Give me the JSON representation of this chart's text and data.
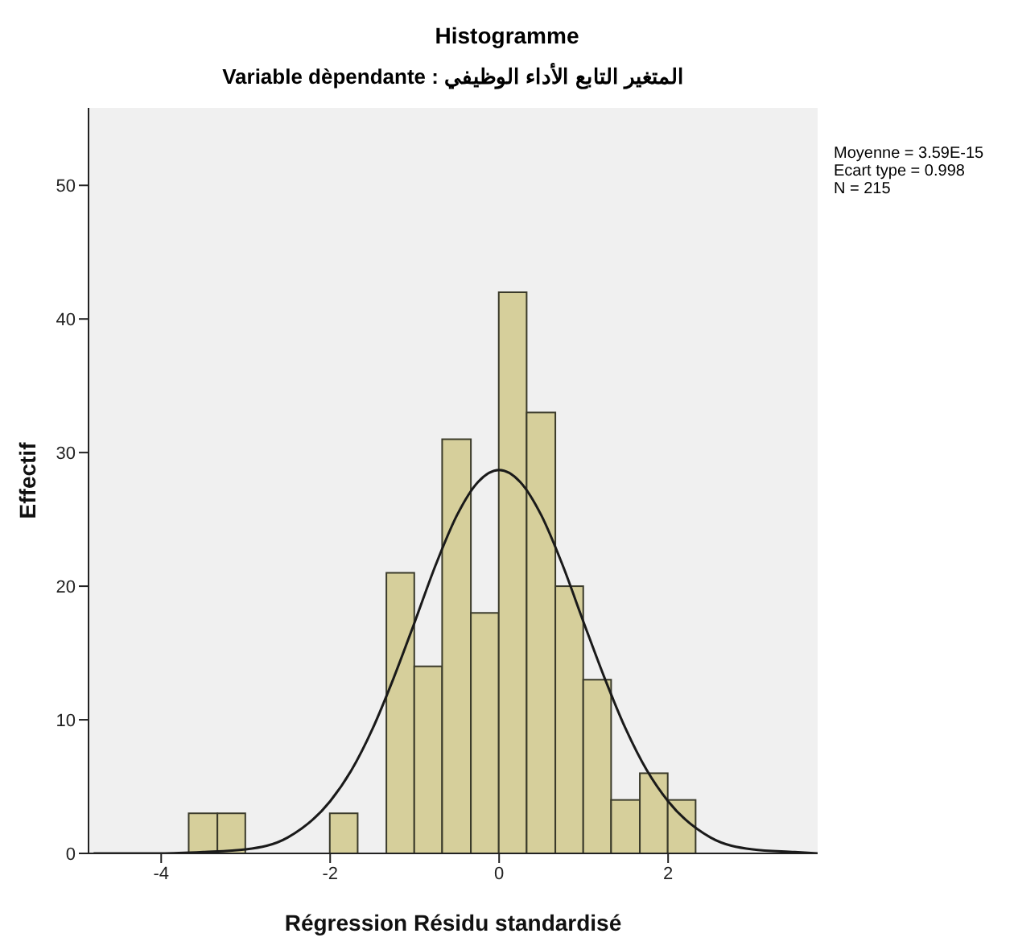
{
  "chart_data": {
    "type": "histogram",
    "title": "Histogramme",
    "subtitle": "Variable dèpendante : المتغير التابع الأداء الوظيفي",
    "xlabel": "Régression Résidu standardisé",
    "ylabel": "Effectif",
    "bins": [
      -3.67,
      -3.33,
      -3,
      -2,
      -1.67,
      -1.33,
      -1,
      -0.67,
      -0.33,
      0,
      0.33,
      0.67,
      1,
      1.33,
      1.67,
      2,
      2.33
    ],
    "values": [
      3,
      3,
      0,
      3,
      0,
      21,
      14,
      31,
      18,
      42,
      33,
      20,
      13,
      4,
      6,
      4
    ],
    "color": "#d6cf9b",
    "series": [
      {
        "type": "line",
        "color": "#1a1a1a",
        "x": [
          -4.8,
          -4,
          -3.5,
          -3,
          -2.5,
          -2,
          -1.75,
          -1.5,
          -1.25,
          -1,
          -0.75,
          -0.5,
          -0.25,
          0,
          0.25,
          0.5,
          0.75,
          1,
          1.25,
          1.5,
          1.75,
          2,
          2.5,
          3,
          3.5,
          3.77
        ],
        "values": [
          0,
          0,
          0.1,
          0.3,
          1.2,
          3.9,
          6.2,
          9.3,
          13.1,
          17.3,
          21.6,
          25.3,
          27.8,
          28.7,
          27.8,
          25.3,
          21.6,
          17.3,
          13.1,
          9.3,
          6.2,
          3.9,
          1.2,
          0.3,
          0.1,
          0
        ]
      }
    ],
    "xlim": [
      -4.86,
      3.77
    ],
    "xticks": [
      -4,
      -2,
      0,
      2
    ],
    "ylim": [
      0,
      55.8
    ],
    "yticks": [
      0,
      10,
      20,
      30,
      40,
      50
    ],
    "grid": false,
    "legend": false,
    "annotations": [
      "Moyenne = 3.59E-15",
      "Ecart type = 0.998",
      "N = 215"
    ]
  }
}
